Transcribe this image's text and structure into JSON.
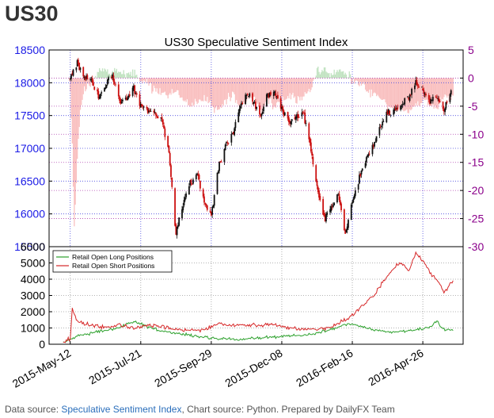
{
  "page": {
    "title": "US30"
  },
  "chart_data": [
    {
      "type": "candlestick",
      "title": "US30 Speculative Sentiment Index",
      "ylim": [
        15500,
        18500
      ],
      "yticks": [
        15500,
        16000,
        16500,
        17000,
        17500,
        18000,
        18500
      ],
      "y2lim": [
        -30,
        5
      ],
      "y2ticks": [
        5,
        0,
        -5,
        -10,
        -15,
        -20,
        -25,
        -30
      ],
      "xlim": [
        "2015-04-21",
        "2016-06-05"
      ],
      "xticks": [
        "2015-May-12",
        "2015-Jul-21",
        "2015-Sep-29",
        "2015-Dec-08",
        "2016-Feb-16",
        "2016-Apr-26"
      ],
      "price_keypoints": [
        [
          "2015-05-12",
          18050
        ],
        [
          "2015-05-19",
          18300
        ],
        [
          "2015-05-26",
          18100
        ],
        [
          "2015-06-02",
          18000
        ],
        [
          "2015-06-09",
          17800
        ],
        [
          "2015-06-16",
          17950
        ],
        [
          "2015-06-23",
          18100
        ],
        [
          "2015-06-30",
          17700
        ],
        [
          "2015-07-07",
          17750
        ],
        [
          "2015-07-14",
          17900
        ],
        [
          "2015-07-21",
          17650
        ],
        [
          "2015-07-28",
          17600
        ],
        [
          "2015-08-04",
          17500
        ],
        [
          "2015-08-11",
          17400
        ],
        [
          "2015-08-18",
          16900
        ],
        [
          "2015-08-25",
          15700
        ],
        [
          "2015-09-01",
          16150
        ],
        [
          "2015-09-08",
          16450
        ],
        [
          "2015-09-15",
          16600
        ],
        [
          "2015-09-22",
          16200
        ],
        [
          "2015-09-29",
          16000
        ],
        [
          "2015-10-06",
          16700
        ],
        [
          "2015-10-13",
          17050
        ],
        [
          "2015-10-20",
          17200
        ],
        [
          "2015-10-27",
          17600
        ],
        [
          "2015-11-03",
          17850
        ],
        [
          "2015-11-10",
          17700
        ],
        [
          "2015-11-17",
          17500
        ],
        [
          "2015-11-24",
          17800
        ],
        [
          "2015-12-01",
          17850
        ],
        [
          "2015-12-08",
          17600
        ],
        [
          "2015-12-15",
          17400
        ],
        [
          "2015-12-22",
          17500
        ],
        [
          "2015-12-29",
          17550
        ],
        [
          "2016-01-05",
          17100
        ],
        [
          "2016-01-12",
          16400
        ],
        [
          "2016-01-19",
          15900
        ],
        [
          "2016-01-26",
          16100
        ],
        [
          "2016-02-02",
          16300
        ],
        [
          "2016-02-09",
          15700
        ],
        [
          "2016-02-16",
          16200
        ],
        [
          "2016-02-23",
          16550
        ],
        [
          "2016-03-01",
          16850
        ],
        [
          "2016-03-08",
          17050
        ],
        [
          "2016-03-15",
          17300
        ],
        [
          "2016-03-22",
          17550
        ],
        [
          "2016-03-29",
          17600
        ],
        [
          "2016-04-05",
          17650
        ],
        [
          "2016-04-12",
          17800
        ],
        [
          "2016-04-19",
          18000
        ],
        [
          "2016-04-26",
          17900
        ],
        [
          "2016-05-03",
          17700
        ],
        [
          "2016-05-10",
          17750
        ],
        [
          "2016-05-17",
          17600
        ],
        [
          "2016-05-24",
          17850
        ]
      ],
      "ssi_keypoints": [
        [
          "2015-05-10",
          0
        ],
        [
          "2015-05-12",
          -3
        ],
        [
          "2015-05-14",
          -12
        ],
        [
          "2015-05-16",
          -27
        ],
        [
          "2015-05-19",
          -14
        ],
        [
          "2015-05-22",
          -6
        ],
        [
          "2015-05-26",
          -2
        ],
        [
          "2015-06-02",
          -1
        ],
        [
          "2015-06-09",
          1
        ],
        [
          "2015-06-16",
          1.5
        ],
        [
          "2015-06-23",
          1
        ],
        [
          "2015-06-30",
          1.5
        ],
        [
          "2015-07-07",
          0.5
        ],
        [
          "2015-07-14",
          1
        ],
        [
          "2015-07-21",
          -0.5
        ],
        [
          "2015-07-28",
          -1
        ],
        [
          "2015-08-04",
          -2
        ],
        [
          "2015-08-11",
          -2.5
        ],
        [
          "2015-08-18",
          -3
        ],
        [
          "2015-08-25",
          -2
        ],
        [
          "2015-09-01",
          -4
        ],
        [
          "2015-09-08",
          -5
        ],
        [
          "2015-09-15",
          -4
        ],
        [
          "2015-09-22",
          -3.5
        ],
        [
          "2015-09-29",
          -5
        ],
        [
          "2015-10-06",
          -6
        ],
        [
          "2015-10-13",
          -4
        ],
        [
          "2015-10-20",
          -3
        ],
        [
          "2015-10-27",
          -5
        ],
        [
          "2015-11-03",
          -4
        ],
        [
          "2015-11-10",
          -3
        ],
        [
          "2015-11-17",
          -6
        ],
        [
          "2015-11-24",
          -4
        ],
        [
          "2015-12-01",
          -5
        ],
        [
          "2015-12-08",
          -4
        ],
        [
          "2015-12-15",
          -3
        ],
        [
          "2015-12-22",
          -4
        ],
        [
          "2015-12-29",
          -3.5
        ],
        [
          "2016-01-05",
          -2
        ],
        [
          "2016-01-12",
          1
        ],
        [
          "2016-01-19",
          1.5
        ],
        [
          "2016-01-26",
          0.5
        ],
        [
          "2016-02-02",
          1.5
        ],
        [
          "2016-02-09",
          1
        ],
        [
          "2016-02-16",
          -0.5
        ],
        [
          "2016-02-23",
          -1
        ],
        [
          "2016-03-01",
          -2
        ],
        [
          "2016-03-08",
          -3
        ],
        [
          "2016-03-15",
          -3.5
        ],
        [
          "2016-03-22",
          -5
        ],
        [
          "2016-03-29",
          -6
        ],
        [
          "2016-04-05",
          -5.5
        ],
        [
          "2016-04-12",
          -6
        ],
        [
          "2016-04-19",
          -5
        ],
        [
          "2016-04-26",
          -4
        ],
        [
          "2016-05-03",
          -4.5
        ],
        [
          "2016-05-10",
          -5.5
        ],
        [
          "2016-05-17",
          -3
        ],
        [
          "2016-05-24",
          -4
        ],
        [
          "2016-05-26",
          -3
        ]
      ]
    },
    {
      "type": "line",
      "ylim": [
        0,
        6000
      ],
      "yticks": [
        0,
        1000,
        2000,
        3000,
        4000,
        5000,
        6000
      ],
      "legend_position": "upper-left",
      "series": [
        {
          "name": "Retail Open Long Positions",
          "color": "#2ca02c",
          "keypoints": [
            [
              "2015-05-05",
              100
            ],
            [
              "2015-05-19",
              500
            ],
            [
              "2015-06-02",
              700
            ],
            [
              "2015-06-16",
              850
            ],
            [
              "2015-06-30",
              1050
            ],
            [
              "2015-07-14",
              1400
            ],
            [
              "2015-07-28",
              1100
            ],
            [
              "2015-08-11",
              800
            ],
            [
              "2015-08-25",
              700
            ],
            [
              "2015-09-08",
              550
            ],
            [
              "2015-09-22",
              450
            ],
            [
              "2015-10-06",
              350
            ],
            [
              "2015-10-20",
              300
            ],
            [
              "2015-11-03",
              350
            ],
            [
              "2015-11-17",
              400
            ],
            [
              "2015-12-01",
              450
            ],
            [
              "2015-12-15",
              500
            ],
            [
              "2015-12-29",
              550
            ],
            [
              "2016-01-12",
              700
            ],
            [
              "2016-01-26",
              900
            ],
            [
              "2016-02-09",
              1200
            ],
            [
              "2016-02-23",
              1150
            ],
            [
              "2016-03-08",
              900
            ],
            [
              "2016-03-22",
              750
            ],
            [
              "2016-04-05",
              800
            ],
            [
              "2016-04-19",
              900
            ],
            [
              "2016-05-03",
              1000
            ],
            [
              "2016-05-10",
              1400
            ],
            [
              "2016-05-17",
              900
            ],
            [
              "2016-05-26",
              850
            ]
          ]
        },
        {
          "name": "Retail Open Short Positions",
          "color": "#d62728",
          "keypoints": [
            [
              "2015-05-05",
              100
            ],
            [
              "2015-05-12",
              350
            ],
            [
              "2015-05-14",
              2100
            ],
            [
              "2015-05-19",
              1400
            ],
            [
              "2015-06-02",
              1150
            ],
            [
              "2015-06-16",
              1050
            ],
            [
              "2015-06-30",
              1200
            ],
            [
              "2015-07-14",
              1000
            ],
            [
              "2015-07-28",
              1150
            ],
            [
              "2015-08-11",
              1100
            ],
            [
              "2015-08-25",
              950
            ],
            [
              "2015-09-08",
              850
            ],
            [
              "2015-09-22",
              900
            ],
            [
              "2015-10-06",
              1250
            ],
            [
              "2015-10-20",
              1150
            ],
            [
              "2015-11-03",
              1200
            ],
            [
              "2015-11-17",
              1100
            ],
            [
              "2015-12-01",
              1250
            ],
            [
              "2015-12-15",
              1000
            ],
            [
              "2015-12-29",
              950
            ],
            [
              "2016-01-12",
              900
            ],
            [
              "2016-01-26",
              1050
            ],
            [
              "2016-02-09",
              1500
            ],
            [
              "2016-02-23",
              2200
            ],
            [
              "2016-03-08",
              3000
            ],
            [
              "2016-03-22",
              4200
            ],
            [
              "2016-03-29",
              4800
            ],
            [
              "2016-04-05",
              5000
            ],
            [
              "2016-04-12",
              4500
            ],
            [
              "2016-04-19",
              5600
            ],
            [
              "2016-04-26",
              5200
            ],
            [
              "2016-05-03",
              4400
            ],
            [
              "2016-05-10",
              4000
            ],
            [
              "2016-05-17",
              3200
            ],
            [
              "2016-05-26",
              3900
            ]
          ]
        }
      ]
    }
  ],
  "footer": {
    "prefix": "Data source: ",
    "link": "Speculative Sentiment Index",
    "suffix": ", Chart source: Python. Prepared by DailyFX Team"
  }
}
